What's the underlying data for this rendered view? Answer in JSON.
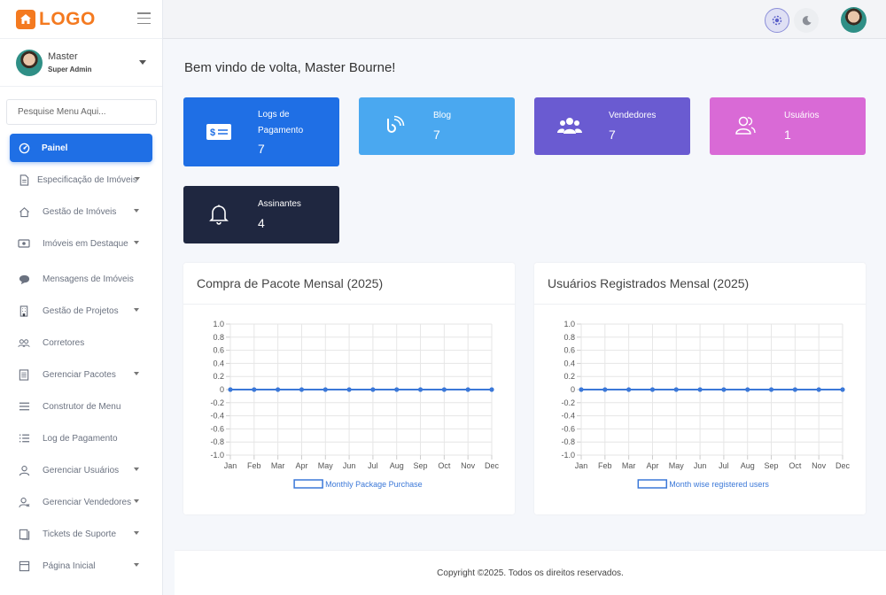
{
  "brand": {
    "logo_text": "LOGO"
  },
  "user": {
    "name": "Master",
    "role": "Super Admin"
  },
  "sidebar": {
    "search_placeholder": "Pesquise Menu Aqui...",
    "items": [
      {
        "label": "Painel",
        "icon": "dashboard-icon",
        "active": true,
        "caret": false
      },
      {
        "label": "Especificação de Imóveis",
        "icon": "document-icon",
        "caret": true
      },
      {
        "label": "Gestão de Imóveis",
        "icon": "home-icon",
        "caret": true
      },
      {
        "label": "Imóveis em Destaque",
        "icon": "featured-icon",
        "caret": true
      },
      {
        "label": "Mensagens de Imóveis",
        "icon": "chat-icon",
        "caret": false
      },
      {
        "label": "Gestão de Projetos",
        "icon": "building-icon",
        "caret": true
      },
      {
        "label": "Corretores",
        "icon": "users-icon",
        "caret": false
      },
      {
        "label": "Gerenciar Pacotes",
        "icon": "list-icon",
        "caret": true
      },
      {
        "label": "Construtor de Menu",
        "icon": "menu-icon",
        "caret": false
      },
      {
        "label": "Log de Pagamento",
        "icon": "log-icon",
        "caret": false
      },
      {
        "label": "Gerenciar Usuários",
        "icon": "user-icon",
        "caret": true
      },
      {
        "label": "Gerenciar Vendedores",
        "icon": "seller-icon",
        "caret": true
      },
      {
        "label": "Tickets de Suporte",
        "icon": "ticket-icon",
        "caret": true
      },
      {
        "label": "Página Inicial",
        "icon": "page-icon",
        "caret": true
      }
    ]
  },
  "welcome": "Bem vindo de volta, Master Bourne!",
  "cards": [
    {
      "label": "Logs de Pagamento",
      "value": "7",
      "color": "#1f6fe5",
      "icon": "payment-card-icon"
    },
    {
      "label": "Blog",
      "value": "7",
      "color": "#4aa8f0",
      "icon": "rss-icon"
    },
    {
      "label": "Vendedores",
      "value": "7",
      "color": "#6a5bd1",
      "icon": "group-icon"
    },
    {
      "label": "Usuários",
      "value": "1",
      "color": "#d96ad6",
      "icon": "user-outline-icon"
    },
    {
      "label": "Assinantes",
      "value": "4",
      "color": "#1f2740",
      "icon": "bell-icon"
    }
  ],
  "panels": {
    "left_title": "Compra de Pacote Mensal (2025)",
    "right_title": "Usuários Registrados Mensal (2025)"
  },
  "chart_data": [
    {
      "type": "line",
      "title": "Compra de Pacote Mensal (2025)",
      "categories": [
        "Jan",
        "Feb",
        "Mar",
        "Apr",
        "May",
        "Jun",
        "Jul",
        "Aug",
        "Sep",
        "Oct",
        "Nov",
        "Dec"
      ],
      "series": [
        {
          "name": "Monthly Package Purchase",
          "values": [
            0,
            0,
            0,
            0,
            0,
            0,
            0,
            0,
            0,
            0,
            0,
            0
          ],
          "color": "#3b78d8"
        }
      ],
      "yticks": [
        "1.0",
        "0.8",
        "0.6",
        "0.4",
        "0.2",
        "0",
        "-0.2",
        "-0.4",
        "-0.6",
        "-0.8",
        "-1.0"
      ],
      "ylim": [
        -1,
        1
      ],
      "legend_position": "bottom",
      "grid": true
    },
    {
      "type": "line",
      "title": "Usuários Registrados Mensal (2025)",
      "categories": [
        "Jan",
        "Feb",
        "Mar",
        "Apr",
        "May",
        "Jun",
        "Jul",
        "Aug",
        "Sep",
        "Oct",
        "Nov",
        "Dec"
      ],
      "series": [
        {
          "name": "Month wise registered users",
          "values": [
            0,
            0,
            0,
            0,
            0,
            0,
            0,
            0,
            0,
            0,
            0,
            0
          ],
          "color": "#3b78d8"
        }
      ],
      "yticks": [
        "1.0",
        "0.8",
        "0.6",
        "0.4",
        "0.2",
        "0",
        "-0.2",
        "-0.4",
        "-0.6",
        "-0.8",
        "-1.0"
      ],
      "ylim": [
        -1,
        1
      ],
      "legend_position": "bottom",
      "grid": true
    }
  ],
  "footer": "Copyright ©2025. Todos os direitos reservados."
}
